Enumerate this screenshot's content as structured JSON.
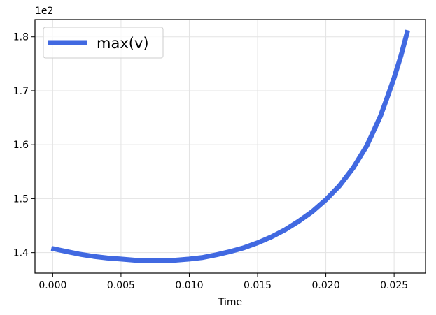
{
  "chart_data": {
    "type": "line",
    "title": "",
    "xlabel": "Time",
    "ylabel": "",
    "y_offset_label": "1e2",
    "xlim": [
      -0.0013,
      0.0273
    ],
    "ylim": [
      1.362,
      1.832
    ],
    "x_ticks": [
      0.0,
      0.005,
      0.01,
      0.015,
      0.02,
      0.025
    ],
    "x_tick_labels": [
      "0.000",
      "0.005",
      "0.010",
      "0.015",
      "0.020",
      "0.025"
    ],
    "y_ticks": [
      1.4,
      1.5,
      1.6,
      1.7,
      1.8
    ],
    "y_tick_labels": [
      "1.4",
      "1.5",
      "1.6",
      "1.7",
      "1.8"
    ],
    "grid": true,
    "legend_position": "top-left",
    "series": [
      {
        "name": "max(v)",
        "color": "#4169e1",
        "x": [
          -0.0001,
          0.001,
          0.002,
          0.003,
          0.004,
          0.005,
          0.006,
          0.007,
          0.0075,
          0.008,
          0.009,
          0.01,
          0.011,
          0.012,
          0.013,
          0.014,
          0.015,
          0.016,
          0.017,
          0.018,
          0.019,
          0.02,
          0.021,
          0.022,
          0.023,
          0.024,
          0.0245,
          0.025,
          0.0255,
          0.026
        ],
        "y": [
          1.408,
          1.402,
          1.397,
          1.393,
          1.39,
          1.388,
          1.386,
          1.385,
          1.385,
          1.385,
          1.386,
          1.388,
          1.391,
          1.396,
          1.402,
          1.409,
          1.418,
          1.429,
          1.442,
          1.458,
          1.476,
          1.498,
          1.524,
          1.557,
          1.598,
          1.653,
          1.688,
          1.724,
          1.765,
          1.812
        ]
      }
    ]
  }
}
